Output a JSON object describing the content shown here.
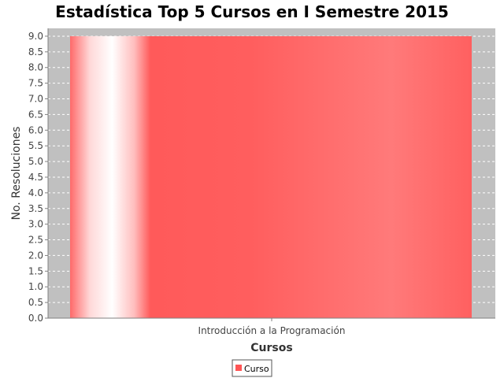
{
  "chart_data": {
    "type": "bar",
    "title": "Estadística Top 5 Cursos en I Semestre 2015",
    "xlabel": "Cursos",
    "ylabel": "No. Resoluciones",
    "categories": [
      "Introducción a la Programación"
    ],
    "series": [
      {
        "name": "Curso",
        "values": [
          9.0
        ]
      }
    ],
    "ylim": [
      0,
      9.25
    ],
    "yticks": [
      "0.0",
      "0.5",
      "1.0",
      "1.5",
      "2.0",
      "2.5",
      "3.0",
      "3.5",
      "4.0",
      "4.5",
      "5.0",
      "5.5",
      "6.0",
      "6.5",
      "7.0",
      "7.5",
      "8.0",
      "8.5",
      "9.0"
    ],
    "grid": true,
    "legend": "bottom-center",
    "colors": {
      "bar": "#ff5555",
      "plot_background": "#c0c0c0",
      "gridline": "#ffffff"
    }
  }
}
